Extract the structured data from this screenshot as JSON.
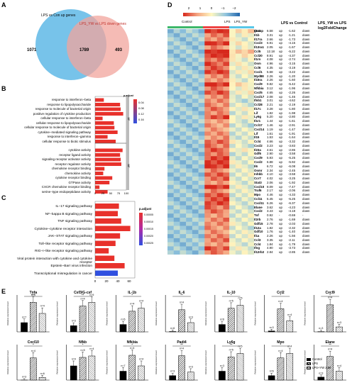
{
  "panels": {
    "A": {
      "letter": "A",
      "label_left": "LPS vs Con up genes",
      "label_right": "LPS_YW vs LPS down genes",
      "left_only": "1071",
      "overlap": "1789",
      "right_only": "493",
      "colors": {
        "left": "#5fb8e6",
        "right": "#f2a49c"
      }
    },
    "B": {
      "letter": "B",
      "bp_tag": "BP",
      "mf_tag": "MF",
      "legend_title": "p.adjust",
      "legend_ticks": [
        "0.04",
        "0.08",
        "0.12",
        "0.16"
      ],
      "x_ticks": [
        "0",
        "25",
        "50",
        "75",
        "100"
      ],
      "bp_terms": [
        {
          "label": "response to interferon−beta",
          "value": 28,
          "color": "#e8312b"
        },
        {
          "label": "response to lipopolysaccharide",
          "value": 80,
          "color": "#e8312b"
        },
        {
          "label": "response to molecule of bacterial origin",
          "value": 82,
          "color": "#e8312b"
        },
        {
          "label": "positive regulation of cytokine production",
          "value": 90,
          "color": "#e8312b"
        },
        {
          "label": "cellular response to interferon−beta",
          "value": 24,
          "color": "#e8312b"
        },
        {
          "label": "cellular response to lipopolysaccharide",
          "value": 60,
          "color": "#e8312b"
        },
        {
          "label": "cellular response to molecule of bacterial origin",
          "value": 62,
          "color": "#e8312b"
        },
        {
          "label": "cytokine−mediated signaling pathway",
          "value": 72,
          "color": "#e8312b"
        },
        {
          "label": "response to interferon−gamma",
          "value": 40,
          "color": "#e8312b"
        },
        {
          "label": "cellular response to biotic stimulus",
          "value": 66,
          "color": "#e8312b"
        }
      ],
      "mf_terms": [
        {
          "label": "cytokine activity",
          "value": 88,
          "color": "#e8312b"
        },
        {
          "label": "receptor ligand activity",
          "value": 80,
          "color": "#e8312b"
        },
        {
          "label": "signaling receptor activator activity",
          "value": 82,
          "color": "#e8312b"
        },
        {
          "label": "receptor regulator activity",
          "value": 84,
          "color": "#e8312b"
        },
        {
          "label": "chemokine receptor binding",
          "value": 30,
          "color": "#e8312b"
        },
        {
          "label": "chemokine activity",
          "value": 26,
          "color": "#e8312b"
        },
        {
          "label": "cytokine receptor binding",
          "value": 55,
          "color": "#e8312b"
        },
        {
          "label": "GTPase activity",
          "value": 46,
          "color": "#e8312b"
        },
        {
          "label": "CXCR chemokine receptor binding",
          "value": 14,
          "color": "#e8312b"
        },
        {
          "label": "serine−type endopeptidase activity",
          "value": 40,
          "color": "#e8312b"
        }
      ]
    },
    "C": {
      "letter": "C",
      "legend_title": "p.adjust",
      "legend_ticks": [
        "0.00005",
        "0.00010",
        "0.00015",
        "0.00020",
        "0.00025"
      ],
      "x_ticks": [
        "0",
        "20",
        "40",
        "60"
      ],
      "terms": [
        {
          "label": "IL−17 signaling pathway",
          "value": 42,
          "color": "#e8312b"
        },
        {
          "label": "NF−kappa B signaling pathway",
          "value": 40,
          "color": "#e8312b"
        },
        {
          "label": "TNF signaling pathway",
          "value": 46,
          "color": "#e8312b"
        },
        {
          "label": "Cytokine−cytokine receptor interaction",
          "value": 62,
          "color": "#e8312b"
        },
        {
          "label": "JAK−STAT signaling pathway",
          "value": 44,
          "color": "#e8312b"
        },
        {
          "label": "Toll−like receptor signaling pathway",
          "value": 36,
          "color": "#e8312b"
        },
        {
          "label": "RIG−I−like receptor signaling pathway",
          "value": 24,
          "color": "#e8312b"
        },
        {
          "label": "Viral protein interaction with cytokine and cytokine receptor",
          "value": 34,
          "color": "#e8312b"
        },
        {
          "label": "Epstein−Barr virus infection",
          "value": 52,
          "color": "#e8312b"
        },
        {
          "label": "Transcriptional misregulation in cancer",
          "value": 40,
          "color": "#3050e0"
        }
      ]
    },
    "D": {
      "letter": "D",
      "scale_ticks": [
        "2",
        "1",
        "0",
        "−1",
        "−2"
      ],
      "group_labels": [
        "Control",
        "LPS",
        "LPS_YW"
      ],
      "group_row_label": "group",
      "header1": "LPS vs Control",
      "header2": "LPS_YW vs LPS",
      "header2b": "log2FoldChange",
      "genes": [
        [
          "Il1r2",
          "6.58",
          "up",
          "-1.62",
          "down"
        ],
        [
          "Il1b",
          "3.31",
          "up",
          "-1.21",
          "down"
        ],
        [
          "Il17ra",
          "2.66",
          "up",
          "-1.73",
          "down"
        ],
        [
          "Cxcl3",
          "6.91",
          "up",
          "-4.15",
          "down"
        ],
        [
          "Il13ra1",
          "2.05",
          "up",
          "-1.67",
          "down"
        ],
        [
          "Ccl5",
          "12.18",
          "up",
          "-5.22",
          "down"
        ],
        [
          "Ccl20",
          "8.91",
          "up",
          "-4.37",
          "down"
        ],
        [
          "Il1rn",
          "4.08",
          "up",
          "-2.74",
          "down"
        ],
        [
          "Osm",
          "4.96",
          "up",
          "-3.15",
          "down"
        ],
        [
          "Ccl6",
          "4.35",
          "up",
          "-3.19",
          "down"
        ],
        [
          "Cxcl1",
          "5.58",
          "up",
          "-3.22",
          "down"
        ],
        [
          "Myd88",
          "2.26",
          "up",
          "-1.20",
          "down"
        ],
        [
          "Il15ra",
          "2.26",
          "up",
          "-1.60",
          "down"
        ],
        [
          "Cxcl9",
          "9.82",
          "up",
          "-5.42",
          "down"
        ],
        [
          "Nfkbia",
          "3.12",
          "up",
          "-1.96",
          "down"
        ],
        [
          "Cxcl5",
          "4.65",
          "up",
          "-2.26",
          "down"
        ],
        [
          "Cxcl17",
          "2.08",
          "up",
          "-1.46",
          "down"
        ],
        [
          "Ifnb1",
          "3.01",
          "up",
          "-4.62",
          "down"
        ],
        [
          "Ccl28",
          "2.21",
          "up",
          "-2.19",
          "down"
        ],
        [
          "Il17c",
          "3.28",
          "up",
          "-1.80",
          "down"
        ],
        [
          "Lif",
          "1.82",
          "up",
          "-1.98",
          "down"
        ],
        [
          "Ly6g",
          "5.20",
          "up",
          "-2.80",
          "down"
        ],
        [
          "Il1r1",
          "1.44",
          "up",
          "-1.61",
          "down"
        ],
        [
          "Ccl17",
          "1.46",
          "up",
          "-2.91",
          "down"
        ],
        [
          "Cxcl14",
          "1.19",
          "up",
          "-1.47",
          "down"
        ],
        [
          "Lif",
          "1.61",
          "up",
          "-1.91",
          "down"
        ],
        [
          "Il15",
          "1.53",
          "up",
          "-1.64",
          "down"
        ],
        [
          "Ccl4",
          "4.66",
          "up",
          "-3.32",
          "down"
        ],
        [
          "Cxcl2",
          "3.23",
          "up",
          "-3.83",
          "down"
        ],
        [
          "Il23a",
          "4.61",
          "up",
          "-2.86",
          "down"
        ],
        [
          "Gdf6",
          "2.90",
          "up",
          "-3.58",
          "down"
        ],
        [
          "Cxcl9",
          "5.93",
          "up",
          "-5.25",
          "down"
        ],
        [
          "Cxcl2",
          "6.88",
          "up",
          "-5.92",
          "down"
        ],
        [
          "Il6",
          "6.72",
          "up",
          "-6.08",
          "down"
        ],
        [
          "Osmr",
          "2.34",
          "up",
          "-2.45",
          "down"
        ],
        [
          "Inhbb",
          "4.10",
          "up",
          "-3.58",
          "down"
        ],
        [
          "Ccr7",
          "4.02",
          "up",
          "-3.25",
          "down"
        ],
        [
          "Stat3",
          "2.06",
          "up",
          "-1.92",
          "down"
        ],
        [
          "Cxcl10",
          "8.09",
          "up",
          "-7.47",
          "down"
        ],
        [
          "Traf6",
          "2.17",
          "up",
          "-2.06",
          "down"
        ],
        [
          "Mpo",
          "4.46",
          "up",
          "-4.33",
          "down"
        ],
        [
          "Ccl11",
          "5.45",
          "up",
          "-5.25",
          "down"
        ],
        [
          "Cxcl11",
          "6.26",
          "up",
          "-6.37",
          "down"
        ],
        [
          "Elane",
          "3.62",
          "up",
          "-4.23",
          "down"
        ],
        [
          "Cxcl2",
          "3.43",
          "up",
          "-4.18",
          "down"
        ],
        [
          "Tnf",
          "0.92",
          "-",
          "-0.69",
          "-"
        ],
        [
          "Il2rb",
          "2.76",
          "up",
          "-1.69",
          "down"
        ],
        [
          "Gdf15",
          "2.78",
          "up",
          "-2.03",
          "down"
        ],
        [
          "Il12a",
          "1.82",
          "up",
          "-2.32",
          "down"
        ],
        [
          "Gdf10",
          "1.76",
          "up",
          "-1.40",
          "down"
        ],
        [
          "Il1a",
          "2.26",
          "up",
          "-1.56",
          "down"
        ],
        [
          "Ccl3",
          "3.35",
          "up",
          "-2.11",
          "down"
        ],
        [
          "Ccl4",
          "1.84",
          "up",
          "-1.79",
          "down"
        ],
        [
          "Ifng",
          "4.90",
          "up",
          "-3.73",
          "down"
        ],
        [
          "Il12rb2",
          "2.84",
          "up",
          "-2.85",
          "down"
        ]
      ]
    },
    "E": {
      "letter": "E",
      "legend": [
        "Control",
        "LPS",
        "LPS+YW 2.56"
      ],
      "y_label": "Relative expression level",
      "row1": [
        {
          "title": "Tnfa",
          "values": [
            1,
            3.2,
            2.0
          ],
          "ymax": 4,
          "n": [
            "n=7",
            "n=4",
            "n=4"
          ],
          "stars": "***"
        },
        {
          "title": "Csf3/G-csf",
          "values": [
            1,
            4.2,
            4.8
          ],
          "ymax": 6,
          "n": [
            "n=3",
            "n=4",
            "n=5"
          ],
          "stars": "**"
        },
        {
          "title": "IL-1b",
          "values": [
            1,
            2.8,
            3.2
          ],
          "ymax": 5,
          "n": [
            "n=6",
            "n=4",
            "n=4"
          ],
          "stars": "*"
        },
        {
          "title": "IL-6",
          "values": [
            1,
            60,
            25
          ],
          "ymax": 100,
          "n": [
            "n=6",
            "n=4",
            "n=3"
          ],
          "stars": "**"
        },
        {
          "title": "IL-10",
          "values": [
            1,
            3.2,
            3.6
          ],
          "ymax": 5,
          "n": [
            "n=6",
            "n=5",
            "n=5"
          ],
          "stars": "*"
        },
        {
          "title": "Ccl2",
          "values": [
            1,
            25,
            12
          ],
          "ymax": 40,
          "n": [
            "n=3",
            "n=4",
            "n=4"
          ],
          "stars": "*"
        },
        {
          "title": "Cxcl9",
          "values": [
            1,
            110,
            20
          ],
          "ymax": 150,
          "n": [
            "n=3",
            "n=4",
            "n=3"
          ],
          "stars": "*"
        }
      ],
      "row2": [
        {
          "title": "Cxcl10",
          "values": [
            1,
            500,
            60
          ],
          "ymax": 800,
          "n": [
            "n=3",
            "n=4",
            "n=6"
          ],
          "stars": "*"
        },
        {
          "title": "Nfkb",
          "values": [
            1,
            1.6,
            1.7
          ],
          "ymax": 2.5,
          "n": [
            "n=4",
            "n=5",
            "n=4"
          ],
          "stars": "*"
        },
        {
          "title": "Nfkbia",
          "values": [
            1,
            2.8,
            1.6
          ],
          "ymax": 4,
          "n": [
            "n=7",
            "n=4",
            "n=4"
          ],
          "stars": "*"
        },
        {
          "title": "Padi4",
          "values": [
            1,
            5.5,
            1.8
          ],
          "ymax": 8,
          "n": [
            "n=3",
            "n=4",
            "n=3"
          ],
          "stars": "**"
        },
        {
          "title": "Ly6g",
          "values": [
            1,
            2.6,
            3.0
          ],
          "ymax": 4,
          "n": [
            "n=3",
            "n=5",
            "n=5"
          ],
          "stars": "**"
        },
        {
          "title": "Mpo",
          "values": [
            1,
            5.0,
            6.0
          ],
          "ymax": 8,
          "n": [
            "n=6",
            "n=4",
            "n=4"
          ],
          "stars": "*"
        },
        {
          "title": "Elane",
          "values": [
            1,
            8.0,
            3.0
          ],
          "ymax": 12,
          "n": [
            "n=3",
            "n=4",
            "n=4"
          ],
          "stars": "**"
        }
      ]
    }
  }
}
